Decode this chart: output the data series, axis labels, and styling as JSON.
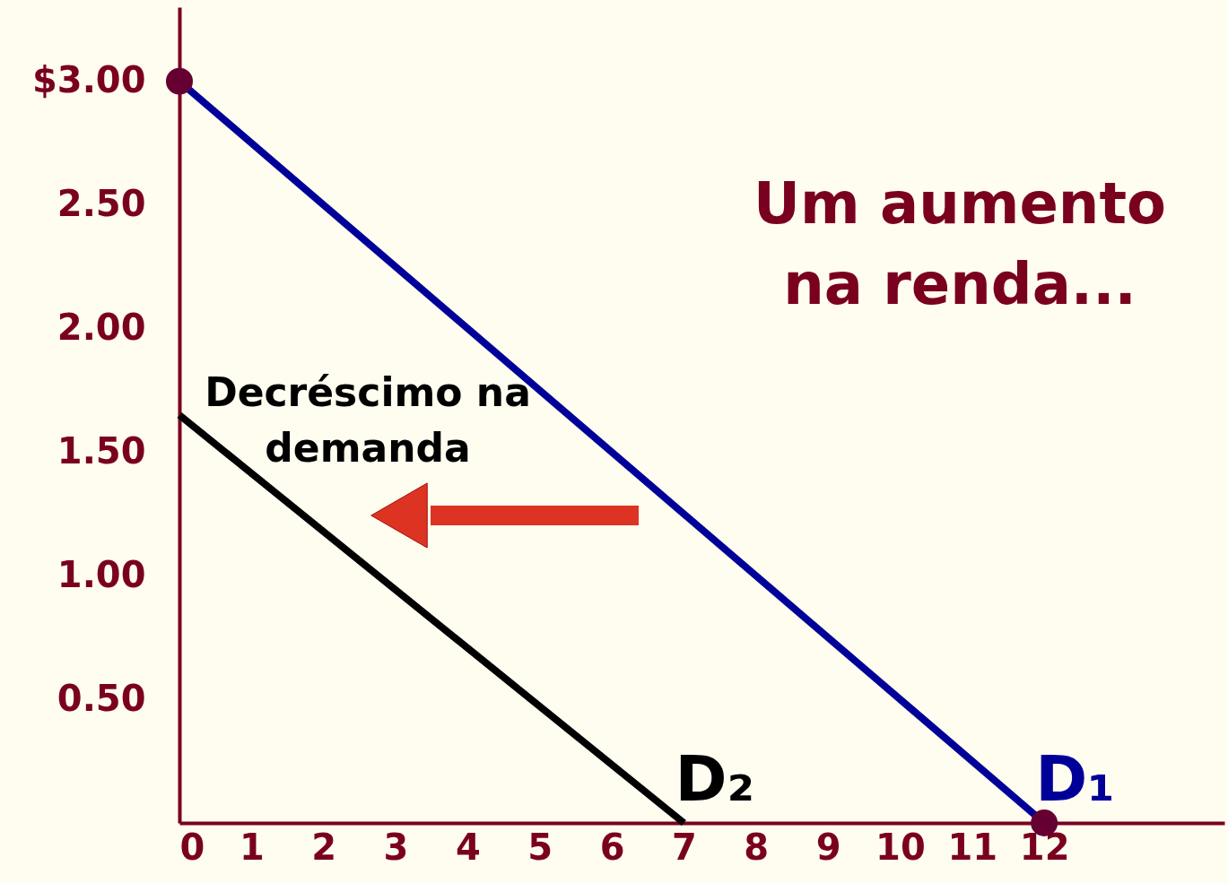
{
  "chart_data": {
    "type": "line",
    "xlim": [
      0,
      14.5
    ],
    "ylim": [
      0,
      3.3
    ],
    "xticks": [
      0,
      1,
      2,
      3,
      4,
      5,
      6,
      7,
      8,
      9,
      10,
      11,
      12
    ],
    "yticks": [
      {
        "value": 0.5,
        "label": "0.50"
      },
      {
        "value": 1,
        "label": "1.00"
      },
      {
        "value": 1.5,
        "label": "1.50"
      },
      {
        "value": 2,
        "label": "2.00"
      },
      {
        "value": 2.5,
        "label": "2.50"
      },
      {
        "value": 3,
        "label": "$3.00"
      }
    ],
    "grid": false,
    "legend": false,
    "series": [
      {
        "name": "D₁",
        "color": "#000099",
        "x": [
          0,
          12
        ],
        "values": [
          3,
          0
        ],
        "marker": "circle"
      },
      {
        "name": "D₂",
        "color": "#000000",
        "x": [
          0,
          7
        ],
        "values": [
          1.65,
          0
        ]
      }
    ],
    "annotations": [
      "Um aumento na renda...",
      "Decréscimo na demanda"
    ]
  }
}
